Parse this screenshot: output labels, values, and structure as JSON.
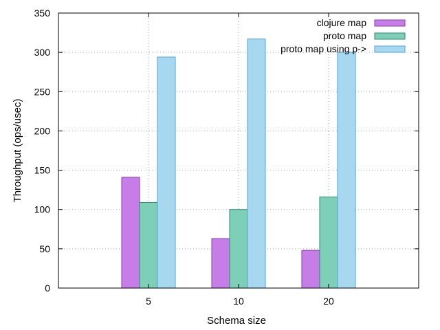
{
  "chart_data": {
    "type": "bar",
    "title": "",
    "xlabel": "Schema size",
    "ylabel": "Throughput (ops/usec)",
    "categories": [
      "5",
      "10",
      "20"
    ],
    "ylim": [
      0,
      350
    ],
    "yticks": [
      0,
      50,
      100,
      150,
      200,
      250,
      300,
      350
    ],
    "grid": true,
    "legend_position": "top-right",
    "series": [
      {
        "name": "clojure map",
        "values": [
          141,
          63,
          48
        ],
        "color": "#c77de8",
        "edge": "#8a3ab5"
      },
      {
        "name": "proto map",
        "values": [
          109,
          100,
          116
        ],
        "color": "#7ecfb7",
        "edge": "#2e8a6c"
      },
      {
        "name": "proto map using p->",
        "values": [
          294,
          317,
          300
        ],
        "color": "#a8d8f0",
        "edge": "#4aa6d8"
      }
    ]
  }
}
